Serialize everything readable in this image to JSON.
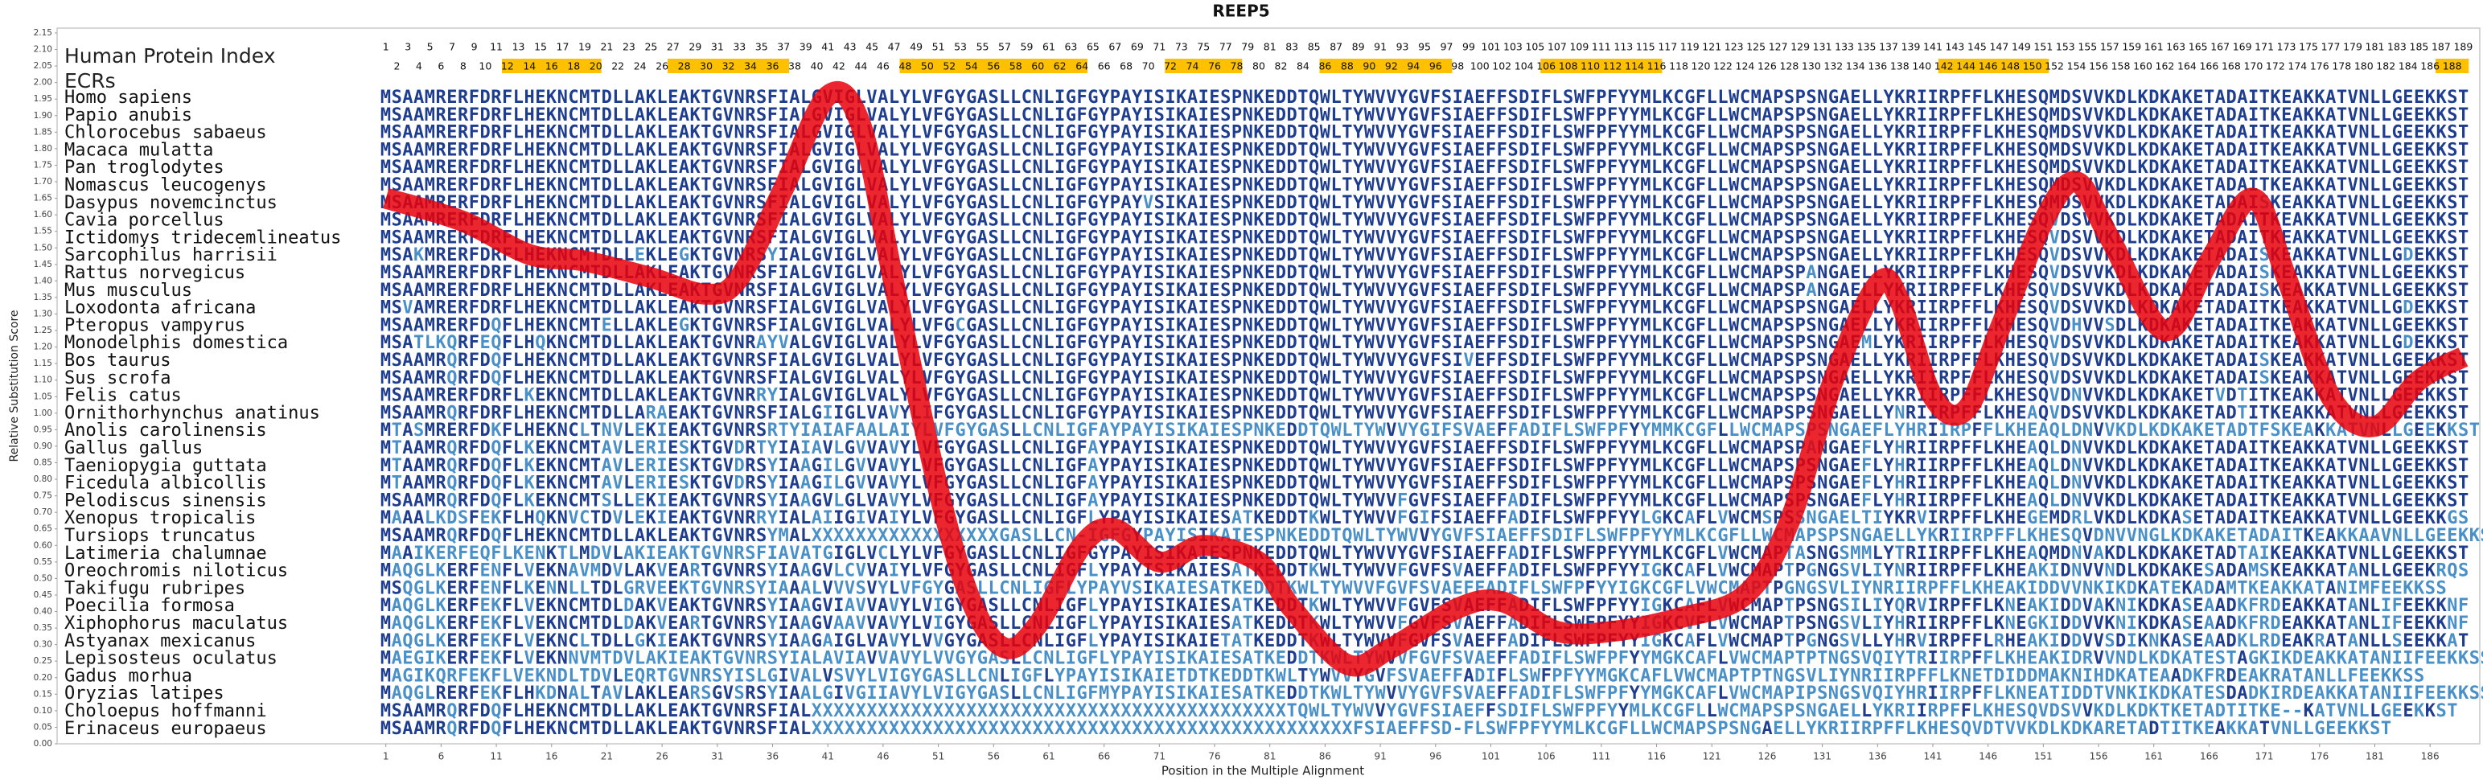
{
  "chart_data": {
    "type": "line",
    "title": "REEP5",
    "x_label": "Position in the Multiple Alignment",
    "y_label": "Relative Substitution Score",
    "color": "#e8000b",
    "x": [
      1,
      8,
      14,
      19,
      25,
      30,
      33,
      37,
      41,
      44,
      47,
      51,
      54,
      57,
      60,
      64,
      67,
      71,
      75,
      80,
      83,
      88,
      92,
      98,
      102,
      107,
      112,
      118,
      124,
      128,
      132,
      136,
      138,
      141,
      144,
      147,
      151,
      154,
      157,
      162,
      166,
      170,
      173,
      177,
      181,
      185,
      189
    ],
    "values": [
      1.65,
      1.58,
      1.48,
      1.46,
      1.41,
      1.36,
      1.41,
      1.68,
      1.96,
      1.87,
      1.39,
      0.77,
      0.43,
      0.29,
      0.36,
      0.6,
      0.65,
      0.55,
      0.6,
      0.55,
      0.41,
      0.24,
      0.29,
      0.41,
      0.43,
      0.34,
      0.34,
      0.38,
      0.45,
      0.67,
      1.1,
      1.39,
      1.34,
      1.05,
      1.01,
      1.25,
      1.58,
      1.7,
      1.53,
      1.25,
      1.46,
      1.65,
      1.41,
      1.05,
      0.96,
      1.1,
      1.17
    ],
    "xlim": [
      -28.75,
      190.5
    ],
    "xticks": [
      1,
      6,
      11,
      16,
      21,
      26,
      31,
      36,
      41,
      46,
      51,
      56,
      61,
      66,
      71,
      76,
      81,
      86,
      91,
      96,
      101,
      106,
      111,
      116,
      121,
      126,
      131,
      136,
      141,
      146,
      151,
      156,
      161,
      166,
      171,
      176,
      181,
      186
    ],
    "ylim": [
      0,
      2.15
    ],
    "yticks": [
      {
        "value": 0,
        "label": "0.00"
      },
      {
        "value": 0.05,
        "label": "0.05"
      },
      {
        "value": 0.1,
        "label": "0.10"
      },
      {
        "value": 0.15,
        "label": "0.15"
      },
      {
        "value": 0.2,
        "label": "0.20"
      },
      {
        "value": 0.25,
        "label": "0.25"
      },
      {
        "value": 0.3,
        "label": "0.30"
      },
      {
        "value": 0.35,
        "label": "0.35"
      },
      {
        "value": 0.4,
        "label": "0.40"
      },
      {
        "value": 0.45,
        "label": "0.45"
      },
      {
        "value": 0.5,
        "label": "0.50"
      },
      {
        "value": 0.55,
        "label": "0.55"
      },
      {
        "value": 0.6,
        "label": "0.60"
      },
      {
        "value": 0.65,
        "label": "0.65"
      },
      {
        "value": 0.7,
        "label": "0.70"
      },
      {
        "value": 0.75,
        "label": "0.75"
      },
      {
        "value": 0.8,
        "label": "0.80"
      },
      {
        "value": 0.85,
        "label": "0.85"
      },
      {
        "value": 0.9,
        "label": "0.90"
      },
      {
        "value": 0.95,
        "label": "0.95"
      },
      {
        "value": 1,
        "label": "1.00"
      },
      {
        "value": 1.05,
        "label": "1.05"
      },
      {
        "value": 1.1,
        "label": "1.10"
      },
      {
        "value": 1.15,
        "label": "1.15"
      },
      {
        "value": 1.2,
        "label": "1.20"
      },
      {
        "value": 1.25,
        "label": "1.25"
      },
      {
        "value": 1.3,
        "label": "1.30"
      },
      {
        "value": 1.35,
        "label": "1.35"
      },
      {
        "value": 1.4,
        "label": "1.40"
      },
      {
        "value": 1.45,
        "label": "1.45"
      },
      {
        "value": 1.5,
        "label": "1.50"
      },
      {
        "value": 1.55,
        "label": "1.55"
      },
      {
        "value": 1.6,
        "label": "1.60"
      },
      {
        "value": 1.65,
        "label": "1.65"
      },
      {
        "value": 1.7,
        "label": "1.70"
      },
      {
        "value": 1.75,
        "label": "1.75"
      },
      {
        "value": 1.8,
        "label": "1.80"
      },
      {
        "value": 1.85,
        "label": "1.85"
      },
      {
        "value": 1.9,
        "label": "1.90"
      },
      {
        "value": 1.95,
        "label": "1.95"
      },
      {
        "value": 2,
        "label": "2.00"
      },
      {
        "value": 2.05,
        "label": "2.05"
      },
      {
        "value": 2.1,
        "label": "2.10"
      },
      {
        "value": 2.15,
        "label": "2.15"
      }
    ]
  },
  "alignment": {
    "index_label": "Human Protein Index",
    "ecr_label": "ECRs",
    "ecr_color": "#ffc000",
    "ecr_regions": [
      [
        12,
        20
      ],
      [
        27,
        37
      ],
      [
        48,
        64
      ],
      [
        72,
        78
      ],
      [
        86,
        97
      ],
      [
        106,
        116
      ],
      [
        142,
        151
      ],
      [
        187,
        189
      ]
    ],
    "human_index": [
      1,
      2,
      3,
      4,
      5,
      6,
      7,
      8,
      9,
      10,
      11,
      12,
      13,
      14,
      15,
      16,
      17,
      18,
      19,
      20,
      21,
      22,
      23,
      24,
      25,
      26,
      27,
      28,
      29,
      30,
      31,
      32,
      33,
      34,
      35,
      36,
      37,
      38,
      39,
      40,
      41,
      42,
      43,
      44,
      45,
      46,
      47,
      48,
      49,
      50,
      51,
      52,
      53,
      54,
      55,
      56,
      57,
      58,
      59,
      60,
      61,
      62,
      63,
      64,
      65,
      66,
      67,
      68,
      69,
      70,
      71,
      72,
      73,
      74,
      75,
      76,
      77,
      78,
      79,
      80,
      81,
      82,
      83,
      84,
      85,
      86,
      87,
      88,
      89,
      90,
      91,
      92,
      93,
      94,
      95,
      96,
      97,
      98,
      99,
      100,
      101,
      102,
      103,
      104,
      105,
      106,
      107,
      108,
      109,
      110,
      111,
      112,
      113,
      114,
      115,
      116,
      117,
      118,
      119,
      120,
      121,
      122,
      123,
      124,
      125,
      126,
      127,
      128,
      129,
      130,
      131,
      132,
      133,
      134,
      135,
      136,
      137,
      138,
      139,
      140,
      141,
      142,
      143,
      144,
      145,
      146,
      147,
      148,
      149,
      150,
      151,
      152,
      153,
      154,
      155,
      156,
      157,
      158,
      159,
      160,
      161,
      162,
      163,
      164,
      165,
      166,
      167,
      168,
      169,
      170,
      171,
      172,
      173,
      174,
      175,
      176,
      177,
      178,
      179,
      180,
      181,
      182,
      183,
      184,
      185,
      186,
      187,
      188,
      189
    ],
    "rows": [
      {
        "species": "Homo sapiens",
        "sequence": "MSAAMRERFDRFLHEKNCMTDLLAKLEAKTGVNRSFIALGVIGLVALYLVFGYGASLLCNLIGFGYPAYISIKAIESPNKEDDTQWLTYWVVYGVFSIAEFFSDIFLSWFPFYYMLKCGFLLWCMAPSPSNGAELLYKRIIRPFFLKHESQMDSVVKDLKDKAKETADAITKEAKKATVNLLGEEKKST"
      },
      {
        "species": "Papio anubis",
        "sequence": "MSAAMRERFDRFLHEKNCMTDLLAKLEAKTGVNRSFIALGVIGLVALYLVFGYGASLLCNLIGFGYPAYISIKAIESPNKEDDTQWLTYWVVYGVFSIAEFFSDIFLSWFPFYYMLKCGFLLWCMAPSPSNGAELLYKRIIRPFFLKHESQMDSVVKDLKDKAKETADAITKEAKKATVNLLGEEKKST"
      },
      {
        "species": "Chlorocebus sabaeus",
        "sequence": "MSAAMRERFDRFLHEKNCMTDLLAKLEAKTGVNRSFIALGVIGLVALYLVFGYGASLLCNLIGFGYPAYISIKAIESPNKEDDTQWLTYWVVYGVFSIAEFFSDIFLSWFPFYYMLKCGFLLWCMAPSPSNGAELLYKRIIRPFFLKHESQMDSVVKDLKDKAKETADAITKEAKKATVNLLGEEKKST"
      },
      {
        "species": "Macaca mulatta",
        "sequence": "MSAAMRERFDRFLHEKNCMTDLLAKLEAKTGVNRSFIALGVIGLVALYLVFGYGASLLCNLIGFGYPAYISIKAIESPNKEDDTQWLTYWVVYGVFSIAEFFSDIFLSWFPFYYMLKCGFLLWCMAPSPSNGAELLYKRIIRPFFLKHESQMDSVVKDLKDKAKETADAITKEAKKATVNLLGEEKKST"
      },
      {
        "species": "Pan troglodytes",
        "sequence": "MSAAMRERFDRFLHEKNCMTDLLAKLEAKTGVNRSFIALGVIGLVALYLVFGYGASLLCNLIGFGYPAYISIKAIESPNKEDDTQWLTYWVVYGVFSIAEFFSDIFLSWFPFYYMLKCGFLLWCMAPSPSNGAELLYKRIIRPFFLKHESQMDSVVKDLKDKAKETADAITKEAKKATVNLLGEEKKST"
      },
      {
        "species": "Nomascus leucogenys",
        "sequence": "MSAAMRERFDRFLHEKNCMTDLLAKLEAKTGVNRSFIALGVIGLVALYLVFGYGASLLCNLIGFGYPAYISIKAIESPNKEDDTQWLTYWVVYGVFSIAEFFSDIFLSWFPFYYMLKCGFLLWCMAPSPSNGAELLYKRIIRPFFLKHESQMDSVVKDLKDKAKETADAITKEAKKATVNLLGEEKKST"
      },
      {
        "species": "Dasypus novemcinctus",
        "sequence": "MSAAMRERFDRFLHEKNCMTDLLAKLEAKTGVNRSFIALGVIGLVALYLVFGYGASLLCNLIGFGYPAYVSIKAIESPNKEDDTQWLTYWVVYGVFSIAEFFSDIFLSWFPFYYMLKCGFLLWCMAPSPSNGAELLYKRIIRPFFLKHESQMDSVVKDLKDKAKETADAISKEAKKATVNLLGEEKKST"
      },
      {
        "species": "Cavia porcellus",
        "sequence": "MSAAMRERFDRFLHEKNCMTDLLAKLEAKTGVNRSFIALGVIGLVALYLVFGYGASLLCNLIGFGYPAYISIKAIESPNKEDDTQWLTYWVVYGVFSIAEFFSDIFLSWFPFYYMLKCGFLLWCMAPSPSNGAELLYKRIIRPFFLKHESQVDSVVKDLKDKAKETADAITKEAKKATVNLLGEEKKST"
      },
      {
        "species": "Ictidomys tridecemlineatus",
        "sequence": "MSAAMRERFDRFLHEKNCMTDLLAKLEAKTGVNRSFIALGVIGLVALYLVFGYGASLLCNLIGFGYPAYISIKAIESPNKEDDTQWLTYWVVYGVFSIAEFFSDIFLSWFPFYYMLKCGFLLWCMAPSPSNGAELLYKRIIRPFFLKHESQVDSVVKDLKDKAKETADAITKEAKKATVNLLGEEKKST"
      },
      {
        "species": "Sarcophilus harrisii",
        "sequence": "MSAKMRERFDRFLHEKNCMTDLLEKLEGKTGVNRSYIALGVIGLVALYLVFGYGASLLCNLIGFGYPAYISIKAIESPNKEDDTQWLTYWVVYGVFSIAEFFSDIFLSWFPFYYMLKCGFLLWCMAPSPSNGAELLYKRIIRPFFLKHESQVDSVVKDLKDKAKETADAISKEAKKATVNLLGDEKKST"
      },
      {
        "species": "Rattus norvegicus",
        "sequence": "MSAAMRERFDRFLHEKNCMTDLLAKLEAKTGVNRSFIALGVIGLVALYLVFGYGASLLCNLIGFGYPAYISIKAIESPNKEDDTQWLTYWVVYGVFSIAEFFSDIFLSWFPFYYMLKCGFLLWCMAPSPANGAELLYKRIIRPFFLKHESQVDSVVKDLKDKAKETADAISKEAKKATVNLLGEEKKST"
      },
      {
        "species": "Mus musculus",
        "sequence": "MSAAMRERFDRFLHEKNCMTDLLAKLEAKTGVNRSFIALGVIGLVALYLVFGYGASLLCNLIGFGYPAYISIKAIESPNKEDDTQWLTYWVVYGVFSIAEFFSDIFLSWFPFYYMLKCGFLLWCMAPSPANGAELLYKRIIRPFFLKHESQVDSVVKDLKDKAKETADAISKEAKKATVNLLGEEKKST"
      },
      {
        "species": "Loxodonta africana",
        "sequence": "MSVAMRERFDRFLHEKNCMTDLLAKLEAKTGVNRSFIALGVIGLVALYLVFGYGASLLCNLIGFGYPAYISIKAIESPNKEDDTQWLTYWVVYGVFSIAEFFSDIFLSWFPFYYMLKCGFLLWCMAPSPSNGAELLYKRIIRPFFLKHESQVDSVVKDLKDKAKETADAITKEAKKATVNLLGDEKKST"
      },
      {
        "species": "Pteropus vampyrus",
        "sequence": "MSAAMRERFDQFLHEKNCMTELLAKLEGKTGVNRSFIALGVIGLVALYLVFGCGASLLCNLIGFGYPAYISIKAIESPNKEDDTQWLTYWVVYGVFSIAEFFSDIFLSWFPFYYMLKCGFLLWCMAPSPSNGAELLYKRIIRPFFLKHESQVDHVVSDLKDKAKETADAITKEAKKATVNLLGEEKKST"
      },
      {
        "species": "Monodelphis domestica",
        "sequence": "MSATLKQRFEQFLHQKNCMTDLLAKLEAKTGVNRAYVALGVIGLVALYLVFGYGASLLCNLIGFGYPAYISIKAIESPNKEDDTQWLTYWVVYGVFSIAEFFSDIFLSWFPFYYMLKCGFLLWCMAPSPSNGAEMLYKRIIRPFFLKHESQVDSVVKDLKDKAKETADAITKEAKKATVNLLGDEKKST"
      },
      {
        "species": "Bos taurus",
        "sequence": "MSAAMRQRFDQFLHEKNCMTDLLAKLEAKTGVNRSFIALGVIGLVALYLVFGYGASLLCNLIGFGYPAYISIKAIESPNKEDDTQWLTYWVVYGVFSIVEFFSDIFLSWFPFYYMLKCGFLLWCMAPSPSNGAELLYKRIIRPFFLKHESQVDSVVKDLKDKAKETADAISKEAKKATVNLLGEEKKST"
      },
      {
        "species": "Sus scrofa",
        "sequence": "MSAAMRQRFDQFLHEKNCMTDLLAKLEAKTGVNRSFIALGVIGLVALYLVFGYGASLLCNLIGFGYPAYISIKAIESPNKEDDTQWLTYWVVYGVFSIAEFFSDIFLSWFPFYYMLKCGFLLWCMAPSPSNGAELLYKRIIRPFFLKHESQVDSVVKDLKDKAKETADAISKEAKKATVNLLGEEKKST"
      },
      {
        "species": "Felis catus",
        "sequence": "MSAAMRERFDRFLKEKNCMTDLLAKLEAKTGVNRRYIALGVIGLVALYLVFGYGASLLCNLIGFGYPAYISIKAIESPNKEDDTQWLTYWVVYGVFSIAEFFSDIFLSWFPFYYMLKCGFLLWCMAPSPSNGAELLYKRIIRPFFLKHESQVDNVVKDLKDKAKETVDTITKEAKKATVNLLGEEKKST"
      },
      {
        "species": "Ornithorhynchus anatinus",
        "sequence": "MSAAMRQRFDRFLHEKNCMTDLLARAEAKTGVNRSFIALGIIGLVAVYLIFGYGASLLCNLIGFGYPAYISIKAIESPNKEDDTQWLTYWVVYGVFSIAEFFSDIFLSWFPFYYMLKCGFLLWCMAPSPSNGAELLYNRIIRPFFLKHEAQVDSVVKDLKDKAKETADTITKEAKKATVNLLGEEKKST"
      },
      {
        "species": "Anolis carolinensis",
        "sequence": "MTASMRERFDKFLHEKNCLTNVLEKIEAKTGVNRSRTYIAIAFAALAIYLVFGYGASLLCNLIGFAYPAYISIKAIESPNKEDDTQWLTYWVVYGIFSVAEFFADIFLSWFPFYYMMKCGFLLWCMAPSPSNGAEFLYHRIIRPFFLKHEAQLDNVVKDLKDKAKETADTFSKEAKKATVNLLGEEKKST"
      },
      {
        "species": "Gallus gallus",
        "sequence": "MTAAMRQRFDQFLKEKNCMTAVLERIESKTGVDRTYIAIAVLGVVAVYLVFGYGASLLCNLIGFAYPAYISIKAIESPNKEDDTQWLTYWVVYGVFSIAEFFSDIFLSWFPFYYMLKCGFLLWCMAPSPANGAEFLYHRIIRPFFLKHEAQLDNVVKDLKDKAKETADAITKEAKKATVNLLGEEKKST"
      },
      {
        "species": "Taeniopygia guttata",
        "sequence": "MTAAMRQRFDQFLKEKNCMTAVLERIESKTGVDRSYIAAGILGVVAVYLVFGYGASLLCNLIGFAYPAYISIKAIESPNKEDDTQWLTYWVVYGVFSIAEFFSDIFLSWFPFYYMLKCGFLLWCMAPSPSNGAEFLYHRIIRPFFLKHEAQLDNVVKDLKDKAKETADAITKEAKKATVNLLGEEKKST"
      },
      {
        "species": "Ficedula albicollis",
        "sequence": "MTAAMRQRFDQFLKEKNCMTAVLERIESKTGVDRSYIAAGILGVVAVYLVFGYGASLLCNLIGFAYPAYISIKAIESPNKEDDTQWLTYWVVYGVFSIAEFFSDIFLSWFPFYYMLKCGFLLWCMAPSPSNGAEFLYHRIIRPFFLKHEAQLDNVVKDLKDKAKETADAITKEAKKATVNLLGEEKKST"
      },
      {
        "species": "Pelodiscus sinensis",
        "sequence": "MSAAMRQRFDQFLKEKNCMTSLLEKIEAKTGVNRSYIAAGVLGLVAVYLVFGYGASLLCNLIGFAYPAYISIKAIESPNKEDDTQWLTYWVVFGVFSIAEFFADIFLSWFPFYYMLKCGFLLWCMAPSPSNGAEFLYHRIIRPFFLKHEAQLDNVVKDLKDKAKETADAITKEAKKATVNLLGEEKKST"
      },
      {
        "species": "Xenopus tropicalis",
        "sequence": "MAAALKDSFEKFLHQKNVCTDVLEKIEAKTGVNRRYIALAIIGIVAIYLVFGYGASLLCNLIGFLYPAYISIKAIESATKEDDTKWLTYWVVFGIFSIAEFFADIFLSWFPFYYLGKCAFLVWCMSPSSNGAELTIYKRVIRPFFLKHEGEMDRLVKDLKDKASETADAITKEAKKATVNLLGEEKKGS"
      },
      {
        "species": "Tursiops truncatus",
        "sequence": "MSAAMRQRFDQFLHEKNCMTDLLAKLEAKTGVNRSYMALXXXXXXXXXXXXXXXXXGASLLCN-IGFGYPAYISIKAIESPNKEDDTQWLTYWVVYGVFSIAEFFSDIFLSWFPFYYMLKCGFLLWCMAPSPSNGAELLYKRIIRPFFLKHESQVDNVVNGLKDKAKETADAITKEAKKAAVNLLGEEKKST"
      },
      {
        "species": "Latimeria chalumnae",
        "sequence": "MAAIKERFEQFLKENKTLMDVLAKIEAKTGVNRSFIAVATGIGLVCLYLVFGYGASLLCNLIGFGYPAYISIKAIESPNKEDDTQWLTYWVVYGVFSIAEFFADIFLSWFPFYYMLKCGFLVWCMAPTASNGSMMLYTRIIRPFFLKHEAQMDNVAKDLKDKAKETADTAIKEAKKATVNLLGEEKKST"
      },
      {
        "species": "Oreochromis niloticus",
        "sequence": "MAQGLKERFENFLVEKNAVMDVLAKVEARTGVNRSYIAAGVLCVVAIYLVFGYGASLLCNLIGFLYPAYISIKAIESATKEDDTKWLTYWVVFGVFSVAEFFADIFLSWFPFYYIGKCAFLVWCMAPTPGNGSVLIYNRIIRPFFLKHEAKIDNVVNDLKDKAKESADAMSKEAKKATANLLGEEKRQS"
      },
      {
        "species": "Takifugu rubripes",
        "sequence": "MSQGLKERFENFLKENNLLTDLGRVEEKTGVNRSYIAAALVVVSVYLVFGYGASLLCNLIGFLYPAYVSIKAIESATKEDDTKWLTYWVVFGVFSVAEFFADIFLSWFPFYYIGKCGFLVWCMAPTPGNGSVLIYNRIIRPFFLKHEAKIDDVVNKIKDKATEKADAMTKEAKKATANIMFEEKKSS"
      },
      {
        "species": "Poecilia formosa",
        "sequence": "MAQGLKERFEKFLVEKNCMTDLDAKVEAKTGVNRSYIAAGVIAVVAVYLVIGYGASLLCNLIGFLYPAYISIKAIESATKEDDTKWLTYWVVFGVFSVAEFFADIFLSWFPFYYIGKCAFLVWCMAPTPSNGSILIYQRVIRPFFLKNEAKIDDVAKNIKDKASEAADKFRDEAKKATANLIFEEKKNF"
      },
      {
        "species": "Xiphophorus maculatus",
        "sequence": "MAQGLKERFEKFLVEKNCMTDLDAKVEARTGVNRSYIAAGVAAVVAVYLVIGYGASLLCNLIGFLYPAYISIKAIESATKEDDTKWLTYWVVFGVFSVAEFFADIFLSWFPFYYIGKCVFLVWCMAPTPSNGSVLIYHRIIRPFFLKNEGKIDDVVKNIKDKASEAADKFRDEAKKATANLIFEEKKNF"
      },
      {
        "species": "Astyanax mexicanus",
        "sequence": "MAQGLKERFEKFLVEKNCLTDLLGKIEAKTGVNRSYIAAGAIGLVAVYLVVGYGASLLCNLIGFLYPAYISIKAIETATKEDDTKWLTYWVVFGVFSVAEFFADIFLSWFPFYYIGKCAFLVWCMAPTPGNGSVLLYHRVIRPFFLRHEAKIDDVVSDIKNKASEAADKLRDEAKRATANLLSEEKKAT"
      },
      {
        "species": "Lepisosteus oculatus",
        "sequence": "MAEGIKERFEKFLVEKNNVMTDVLAKIEAKTGVNRSYIALAVIAVVAVYLVVGYGASLLCNLIGFLYPAYISIKAIESATKEDDTKWLTYWVVFGVFSVAEFFADIFLSWFPFYYMGKCAFLVWCMAPTPTNGSVQIYTRIIRPFFLKHEAKIDRVVNDLKDKATESTAGKIKDEAKKATANIIFEEKKSS"
      },
      {
        "species": "Gadus morhua",
        "sequence": "MAGIKQRFEKFLVEKNDLTDVLEQRTGVNRSYISLGIVALVSVYLVIGYGASLLCNLIGFLYPAYISIKAIETDTKEDDTKWLTYWVVYGVFSVAEFFADIFLSWFPFYYMGKCAFLVWCMAPTPTNGSVLIYNRIIRPFFLKNETDIDDMAKNIHDKATEAADKFRDEAKRATANLLFEEKKSS"
      },
      {
        "species": "Oryzias latipes",
        "sequence": "MAQGLRERFEKFLHKDNALTAVLAKLEARSGVSRSYIAALGIVGIIAVYLVIGYGASLLCNLIGFMYPAYISIKAIESATKEDDTKWLTYWVVYGVFSVAEFFADIFLSWFPFYYMGKCAFLVWCMAPIPSNGSVQIYHRIIRPFFLKNEATIDDTVNKIKDKATESDADKIRDEAKKATANIIFEEKKSS"
      },
      {
        "species": "Choloepus hoffmanni",
        "sequence": "MSAAMRQRFDQFLHEKNCMTDLLAKLEAKTGVNRSFIALXXXXXXXXXXXXXXXXXXXXXXXXXXXXXXXXXXXXXXXXXXXTQWLTYWVVYGVFSIAEFFSDIFLSWFPFYYMLKCGFLLWCMAPSPSNGAELLYKRIIRPFFLKHESQVDSVVKDLKDKTKETADTITKE--KATVNLLGEEKKST"
      },
      {
        "species": "Erinaceus europaeus",
        "sequence": "MSAAMRQRFDQFLHEKNCMTDLLAKLEAKTGVNRSFIALXXXXXXXXXXXXXXXXXXXXXXXXXXXXXXXXXXXXXXXXXXXXXXXXXFSIAEFFSD-FLSWFPFYYMLKCGFLLWCMAPSPSNGAELLYKRIIRPFFLKHESQVDTVVKDLKDKARETADTITKEAKKATVNLLGEEKKST"
      }
    ]
  }
}
